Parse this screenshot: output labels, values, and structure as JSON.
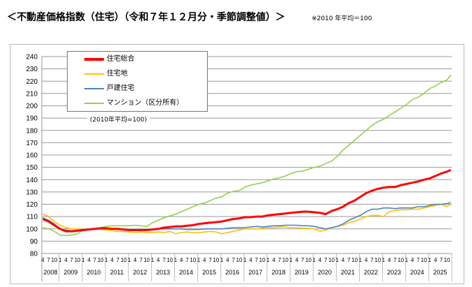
{
  "title": "＜不動産価格指数（住宅）（令和７年１２月分・季節調整値）＞",
  "note": "※2010 年平均＝100",
  "chart_data": {
    "type": "line",
    "title": "",
    "base_note": "(2010年平均=100)",
    "ylim": [
      80,
      240
    ],
    "yticks": [
      80,
      90,
      100,
      110,
      120,
      130,
      140,
      150,
      160,
      170,
      180,
      190,
      200,
      210,
      220,
      230,
      240
    ],
    "grid": true,
    "legend_position": "top-left",
    "month_ticks": [
      "1",
      "4",
      "7",
      "10"
    ],
    "years": [
      "2008",
      "2009",
      "2010",
      "2011",
      "2012",
      "2013",
      "2014",
      "2015",
      "2016",
      "2017",
      "2018",
      "2019",
      "2020",
      "2021",
      "2022",
      "2023",
      "2024",
      "2025"
    ],
    "x": [
      "2008-04",
      "2008-07",
      "2008-10",
      "2009-01",
      "2009-04",
      "2009-07",
      "2009-10",
      "2010-01",
      "2010-04",
      "2010-07",
      "2010-10",
      "2011-01",
      "2011-04",
      "2011-07",
      "2011-10",
      "2012-01",
      "2012-04",
      "2012-07",
      "2012-10",
      "2013-01",
      "2013-04",
      "2013-07",
      "2013-10",
      "2014-01",
      "2014-04",
      "2014-07",
      "2014-10",
      "2015-01",
      "2015-04",
      "2015-07",
      "2015-10",
      "2016-01",
      "2016-04",
      "2016-07",
      "2016-10",
      "2017-01",
      "2017-04",
      "2017-07",
      "2017-10",
      "2018-01",
      "2018-04",
      "2018-07",
      "2018-10",
      "2019-01",
      "2019-04",
      "2019-07",
      "2019-10",
      "2020-01",
      "2020-04",
      "2020-07",
      "2020-10",
      "2021-01",
      "2021-04",
      "2021-07",
      "2021-10",
      "2022-01",
      "2022-04",
      "2022-07",
      "2022-10",
      "2023-01",
      "2023-04",
      "2023-07",
      "2023-10",
      "2024-01",
      "2024-04",
      "2024-07",
      "2024-10",
      "2025-01",
      "2025-04",
      "2025-07",
      "2025-10",
      "2025-12"
    ],
    "series": [
      {
        "name": "住宅総合",
        "color": "#ff0000",
        "values": [
          108,
          106,
          103,
          100,
          98,
          98,
          98.5,
          99,
          99.5,
          100,
          100.5,
          100.5,
          100,
          100,
          99.5,
          99,
          99,
          99,
          99,
          99.5,
          100,
          101,
          101.5,
          102,
          102,
          102.5,
          103,
          104,
          104.5,
          105,
          105.5,
          106,
          107,
          108,
          108.5,
          109.5,
          109.5,
          110,
          110,
          111,
          111.5,
          112,
          112.5,
          113,
          113.5,
          114,
          114,
          113.5,
          113,
          112,
          114.5,
          116,
          118,
          121,
          123,
          126,
          129,
          131,
          132.5,
          133.5,
          134,
          134,
          135.5,
          136.5,
          137.5,
          138.5,
          140,
          141,
          143,
          145,
          146.5,
          148
        ]
      },
      {
        "name": "住宅地",
        "color": "#ffc000",
        "values": [
          112,
          110,
          106,
          103,
          101,
          100,
          100,
          99.5,
          100,
          99.5,
          100,
          99,
          98.5,
          98,
          98,
          97.5,
          97,
          97.5,
          97,
          97,
          97.5,
          97,
          98,
          96,
          97,
          97.5,
          97,
          97,
          97.5,
          98,
          97.5,
          96,
          97,
          98,
          99,
          100,
          100,
          100,
          100.5,
          101,
          101,
          101.5,
          101.5,
          101,
          101,
          100.5,
          100.5,
          100,
          98,
          99,
          101,
          102,
          103,
          105,
          106,
          108,
          110,
          111,
          111,
          110,
          114,
          115,
          115.5,
          115.5,
          116,
          116,
          117,
          118,
          119,
          120,
          118,
          120
        ]
      },
      {
        "name": "戸建住宅",
        "color": "#4f81bd",
        "values": [
          109,
          107,
          104,
          100,
          99,
          98.5,
          99,
          99.5,
          100,
          100,
          100,
          100,
          100,
          99.5,
          99.5,
          99,
          99,
          99,
          99.5,
          99.5,
          100,
          100,
          100,
          100,
          100,
          99.5,
          99.5,
          99.5,
          100,
          100,
          100,
          100,
          100.5,
          101,
          101,
          101,
          101.5,
          102,
          101.5,
          102,
          102.5,
          102.5,
          103,
          103,
          103,
          102.5,
          102.5,
          102,
          101,
          100,
          101,
          102,
          104,
          107,
          109,
          111,
          114,
          116,
          116,
          117,
          117,
          116.5,
          117,
          117,
          117,
          118,
          118,
          119,
          120,
          120,
          120.5,
          121.5
        ]
      },
      {
        "name": "マンション（区分所有）",
        "color": "#92d050",
        "values": [
          101,
          100,
          98,
          95,
          94.5,
          95,
          96,
          99,
          99.5,
          100,
          101,
          102,
          102.5,
          102.5,
          102.5,
          102.5,
          103,
          102.5,
          102,
          105,
          107,
          109,
          110.5,
          112,
          114,
          116,
          118,
          120,
          121,
          123,
          125,
          126,
          129,
          130.5,
          131,
          134,
          135.5,
          136.5,
          137.5,
          139,
          140.5,
          141.5,
          143,
          145,
          146.5,
          147,
          148.5,
          150,
          151,
          153,
          155,
          159,
          164,
          168,
          172,
          176,
          180,
          184,
          187,
          189,
          192,
          195,
          198,
          201,
          205,
          207,
          210,
          214,
          216,
          219,
          221,
          225
        ]
      }
    ]
  }
}
